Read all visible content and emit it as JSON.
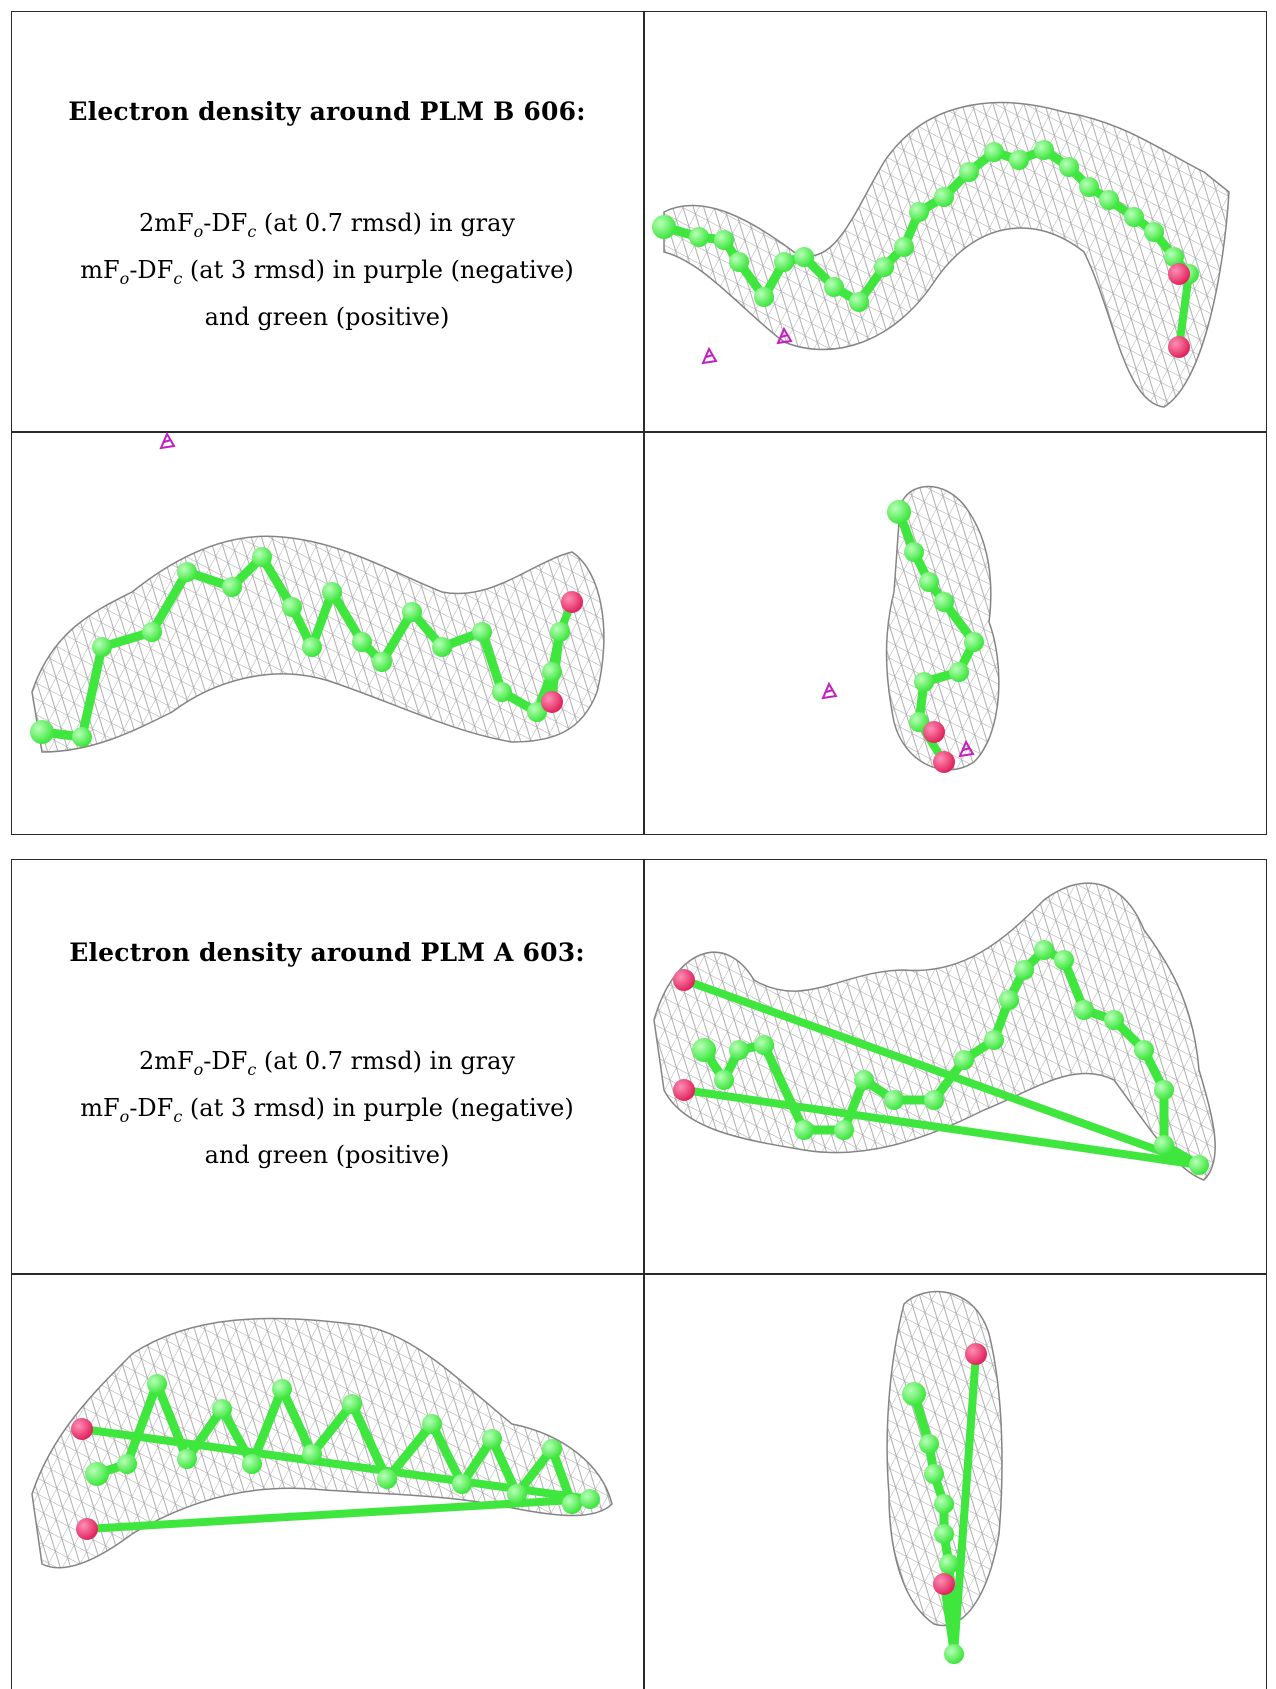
{
  "panels": [
    {
      "title": "Electron density around PLM B 606:",
      "line1_prefix": "2mF",
      "line1_sub1": "o",
      "line1_mid": "-DF",
      "line1_sub2": "c",
      "line1_suffix": " (at 0.7 rmsd) in gray",
      "line2_prefix": "mF",
      "line2_sub1": "o",
      "line2_mid": "-DF",
      "line2_sub2": "c",
      "line2_suffix": " (at 3 rmsd) in purple (negative)",
      "line3": "and green (positive)"
    },
    {
      "title": "Electron density around PLM A 603:",
      "line1_prefix": "2mF",
      "line1_sub1": "o",
      "line1_mid": "-DF",
      "line1_sub2": "c",
      "line1_suffix": " (at 0.7 rmsd) in gray",
      "line2_prefix": "mF",
      "line2_sub1": "o",
      "line2_mid": "-DF",
      "line2_sub2": "c",
      "line2_suffix": " (at 3 rmsd) in purple (negative)",
      "line3": "and green (positive)"
    }
  ],
  "colors": {
    "carbon": "#3ee63e",
    "oxygen": "#e0245e",
    "mesh": "#8a8a8a",
    "negative_density": "#c21ec2",
    "border": "#2a2a2a"
  }
}
